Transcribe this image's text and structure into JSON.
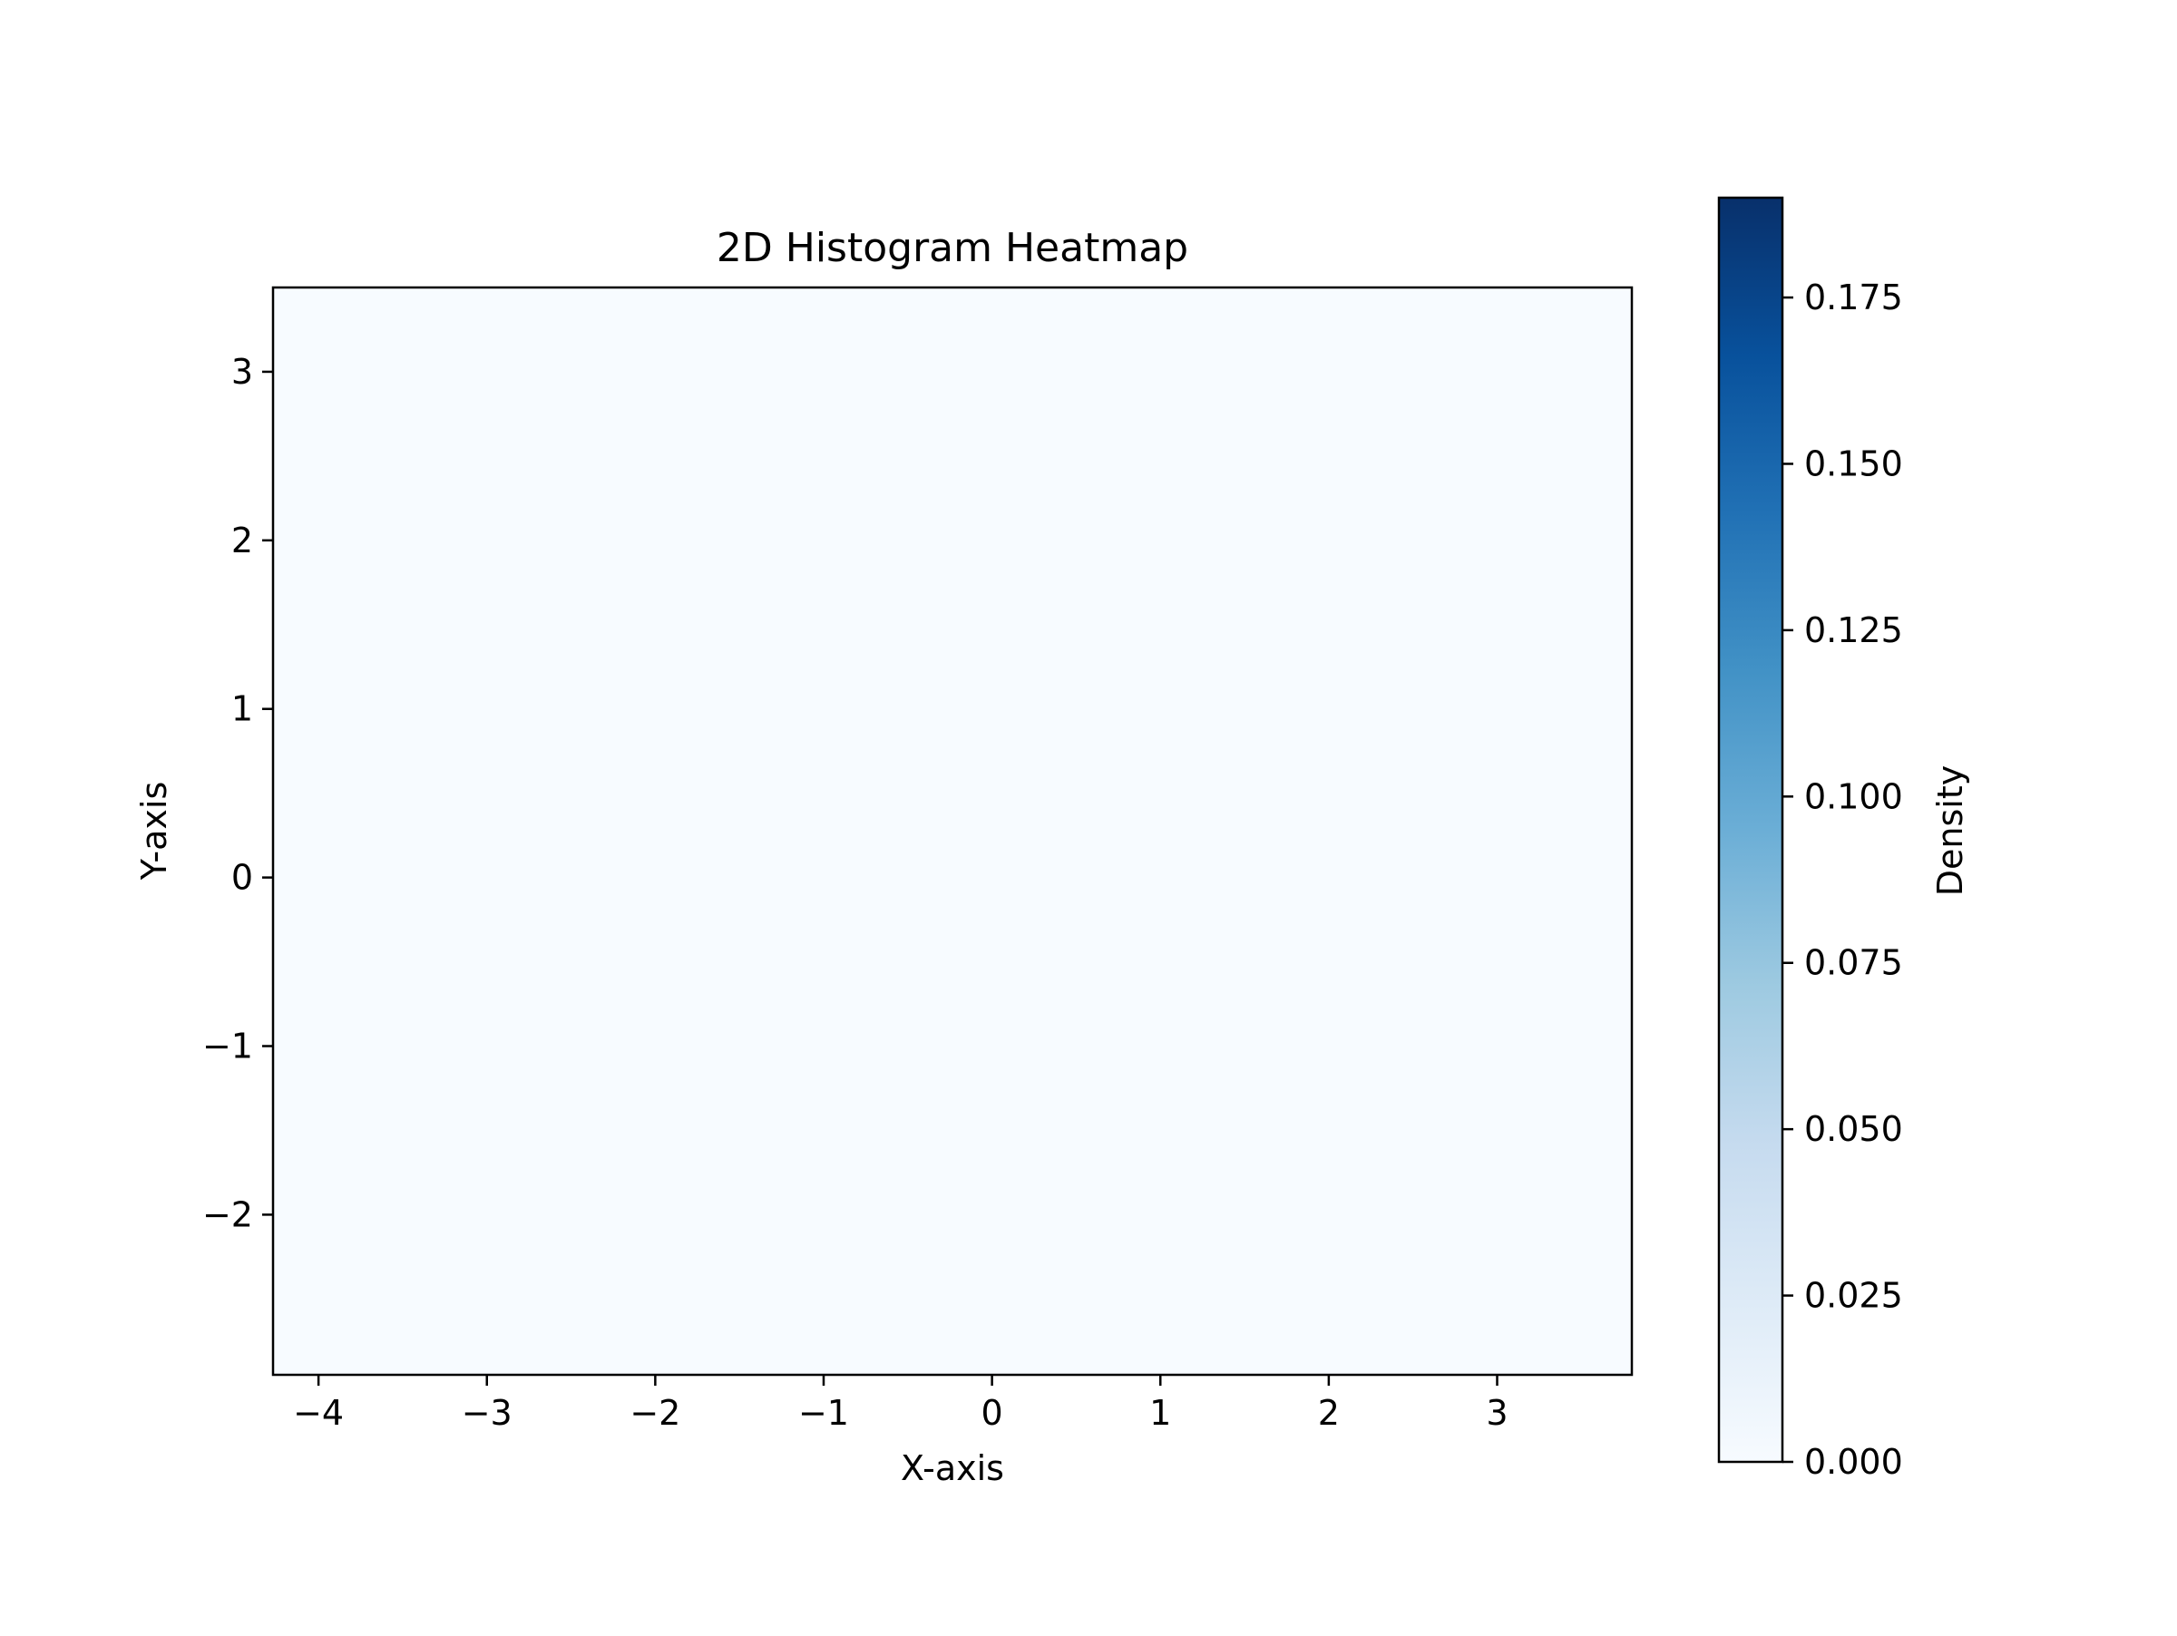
{
  "chart_data": {
    "type": "heatmap",
    "title": "2D Histogram Heatmap",
    "xlabel": "X-axis",
    "ylabel": "Y-axis",
    "colorbar_label": "Density",
    "colormap": "Blues",
    "colormap_stops": [
      "#f7fbff",
      "#deebf7",
      "#c6dbef",
      "#9ecae1",
      "#6baed6",
      "#4292c6",
      "#2171b5",
      "#08519c",
      "#08306b"
    ],
    "xlim": [
      -4.27,
      3.8
    ],
    "ylim": [
      -2.95,
      3.5
    ],
    "x_ticks": [
      -4,
      -3,
      -2,
      -1,
      0,
      1,
      2,
      3
    ],
    "x_tick_labels": [
      "−4",
      "−3",
      "−2",
      "−1",
      "0",
      "1",
      "2",
      "3"
    ],
    "y_ticks": [
      -2,
      -1,
      0,
      1,
      2,
      3
    ],
    "y_tick_labels": [
      "−2",
      "−1",
      "0",
      "1",
      "2",
      "3"
    ],
    "vmin": 0,
    "vmax": 0.19,
    "colorbar_ticks": [
      0,
      0.025,
      0.05,
      0.075,
      0.1,
      0.125,
      0.15,
      0.175
    ],
    "colorbar_tick_labels": [
      "0.000",
      "0.025",
      "0.050",
      "0.075",
      "0.100",
      "0.125",
      "0.150",
      "0.175"
    ],
    "grid": false,
    "n_x_bins": 30,
    "n_y_bins": 30,
    "rows_top_to_bottom": [
      [
        0,
        0,
        0,
        0,
        0,
        0,
        0,
        0,
        0,
        0,
        0,
        0,
        0,
        0,
        0,
        0,
        0,
        0,
        0,
        0,
        0,
        0,
        0,
        0,
        0,
        0,
        0,
        0,
        0,
        0
      ],
      [
        0,
        0,
        0,
        0,
        0,
        0,
        0,
        0,
        0,
        0,
        0,
        0,
        0,
        0,
        0,
        0,
        0,
        0,
        0,
        0,
        0,
        0,
        0,
        0,
        0,
        0,
        0,
        0,
        0,
        0
      ],
      [
        0,
        0,
        0,
        0,
        0,
        0,
        0,
        0,
        0,
        0,
        0,
        0,
        0,
        0,
        0,
        0,
        0,
        0,
        0,
        0,
        0,
        0,
        0,
        0,
        0,
        0,
        0,
        0,
        0,
        0
      ],
      [
        0,
        0,
        0,
        0,
        0,
        0,
        0,
        0,
        0,
        0,
        0,
        0,
        0,
        0,
        0,
        0,
        0,
        0,
        0,
        0,
        0,
        0,
        0,
        0,
        0,
        0,
        0,
        0,
        0,
        0
      ],
      [
        0,
        0,
        0,
        0,
        0,
        0,
        0,
        0,
        0,
        0,
        0,
        0,
        0,
        0,
        0,
        0,
        0,
        0,
        0,
        0,
        0,
        0,
        0,
        0,
        0,
        0,
        0,
        0,
        0,
        0
      ],
      [
        0,
        0,
        0,
        0,
        0,
        0,
        0,
        0,
        0,
        0,
        0,
        0,
        0,
        0,
        0,
        0,
        0,
        0,
        0,
        0,
        0,
        0,
        0,
        0,
        0,
        0,
        0,
        0,
        0,
        0
      ],
      [
        0,
        0,
        0,
        0,
        0,
        0,
        0,
        0,
        0,
        0,
        0,
        0,
        0,
        0,
        0,
        0,
        0,
        0,
        0,
        0,
        0,
        0,
        0,
        0,
        0,
        0,
        0,
        0,
        0,
        0
      ],
      [
        0,
        0,
        0,
        0,
        0,
        0,
        0,
        0,
        0,
        0,
        0,
        0,
        0,
        0,
        0,
        0,
        0,
        0,
        0,
        0,
        0,
        0,
        0,
        0,
        0,
        0,
        0,
        0,
        0,
        0
      ],
      [
        0,
        0,
        0,
        0,
        0,
        0,
        0,
        0,
        0,
        0,
        0,
        0,
        0,
        0,
        0,
        0,
        0,
        0,
        0,
        0,
        0,
        0,
        0,
        0,
        0,
        0,
        0,
        0,
        0,
        0
      ],
      [
        0,
        0,
        0,
        0,
        0,
        0,
        0,
        0,
        0,
        0,
        0,
        0,
        0,
        0,
        0,
        0,
        0,
        0,
        0,
        0,
        0,
        0,
        0,
        0,
        0,
        0,
        0,
        0,
        0,
        0
      ],
      [
        0,
        0,
        0,
        0,
        0,
        0,
        0,
        0,
        0,
        0,
        0,
        0,
        0,
        0,
        0,
        0,
        0,
        0,
        0,
        0,
        0,
        0,
        0,
        0,
        0,
        0,
        0,
        0,
        0,
        0
      ],
      [
        0,
        0,
        0,
        0,
        0,
        0,
        0,
        0,
        0,
        0,
        0,
        0,
        0,
        0,
        0,
        0,
        0,
        0,
        0,
        0,
        0,
        0,
        0,
        0,
        0,
        0,
        0,
        0,
        0,
        0
      ],
      [
        0,
        0,
        0,
        0,
        0,
        0,
        0,
        0,
        0,
        0,
        0,
        0,
        0,
        0,
        0,
        0,
        0,
        0,
        0,
        0,
        0,
        0,
        0,
        0,
        0,
        0,
        0,
        0,
        0,
        0
      ],
      [
        0,
        0,
        0,
        0,
        0,
        0,
        0,
        0,
        0,
        0,
        0,
        0,
        0,
        0,
        0,
        0,
        0,
        0,
        0,
        0,
        0,
        0,
        0,
        0,
        0,
        0,
        0,
        0,
        0,
        0
      ],
      [
        0,
        0,
        0,
        0,
        0,
        0,
        0,
        0,
        0,
        0,
        0,
        0,
        0,
        0,
        0,
        0,
        0,
        0,
        0,
        0,
        0,
        0,
        0,
        0,
        0,
        0,
        0,
        0,
        0,
        0
      ],
      [
        0,
        0,
        0,
        0,
        0,
        0,
        0,
        0,
        0,
        0,
        0,
        0,
        0,
        0,
        0,
        0,
        0,
        0,
        0,
        0,
        0,
        0,
        0,
        0,
        0,
        0,
        0,
        0,
        0,
        0
      ],
      [
        0,
        0,
        0,
        0,
        0,
        0,
        0,
        0,
        0,
        0,
        0,
        0,
        0,
        0,
        0,
        0,
        0,
        0,
        0,
        0,
        0,
        0,
        0,
        0,
        0,
        0,
        0,
        0,
        0,
        0
      ],
      [
        0,
        0,
        0,
        0,
        0,
        0,
        0,
        0,
        0,
        0,
        0,
        0,
        0,
        0,
        0,
        0,
        0,
        0,
        0,
        0,
        0,
        0,
        0,
        0,
        0,
        0,
        0,
        0,
        0,
        0
      ],
      [
        0,
        0,
        0,
        0,
        0,
        0,
        0,
        0,
        0,
        0,
        0,
        0,
        0,
        0,
        0,
        0,
        0,
        0,
        0,
        0,
        0,
        0,
        0,
        0,
        0,
        0,
        0,
        0,
        0,
        0
      ],
      [
        0,
        0,
        0,
        0,
        0,
        0,
        0,
        0,
        0,
        0,
        0,
        0,
        0,
        0,
        0,
        0,
        0,
        0,
        0,
        0,
        0,
        0,
        0,
        0,
        0,
        0,
        0,
        0,
        0,
        0
      ],
      [
        0,
        0,
        0,
        0,
        0,
        0,
        0,
        0,
        0,
        0,
        0,
        0,
        0,
        0,
        0,
        0,
        0,
        0,
        0,
        0,
        0,
        0,
        0,
        0,
        0,
        0,
        0,
        0,
        0,
        0
      ],
      [
        0,
        0,
        0,
        0,
        0,
        0,
        0,
        0,
        0,
        0,
        0,
        0,
        0,
        0,
        0,
        0,
        0,
        0,
        0,
        0,
        0,
        0,
        0,
        0,
        0,
        0,
        0,
        0,
        0,
        0
      ],
      [
        0,
        0,
        0,
        0,
        0,
        0,
        0,
        0,
        0,
        0,
        0,
        0,
        0,
        0,
        0,
        0,
        0,
        0,
        0,
        0,
        0,
        0,
        0,
        0,
        0,
        0,
        0,
        0,
        0,
        0
      ],
      [
        0,
        0,
        0,
        0,
        0,
        0,
        0,
        0,
        0,
        0,
        0,
        0,
        0,
        0,
        0,
        0,
        0,
        0,
        0,
        0,
        0,
        0,
        0,
        0,
        0,
        0,
        0,
        0,
        0,
        0
      ],
      [
        0,
        0,
        0,
        0,
        0,
        0,
        0,
        0,
        0,
        0,
        0,
        0,
        0,
        0,
        0,
        0,
        0,
        0,
        0,
        0,
        0,
        0,
        0,
        0,
        0,
        0,
        0,
        0,
        0,
        0
      ],
      [
        0,
        0,
        0,
        0,
        0,
        0,
        0,
        0,
        0,
        0,
        0,
        0,
        0,
        0,
        0,
        0,
        0,
        0,
        0,
        0,
        0,
        0,
        0,
        0,
        0,
        0,
        0,
        0,
        0,
        0
      ],
      [
        0,
        0,
        0,
        0,
        0,
        0,
        0,
        0,
        0,
        0,
        0,
        0,
        0,
        0,
        0,
        0,
        0,
        0,
        0,
        0,
        0,
        0,
        0,
        0,
        0,
        0,
        0,
        0,
        0,
        0
      ],
      [
        0,
        0,
        0,
        0,
        0,
        0,
        0,
        0,
        0,
        0,
        0,
        0,
        0,
        0,
        0,
        0,
        0,
        0,
        0,
        0,
        0,
        0,
        0,
        0,
        0,
        0,
        0,
        0,
        0,
        0
      ],
      [
        0,
        0,
        0,
        0,
        0,
        0,
        0,
        0,
        0,
        0,
        0,
        0,
        0,
        0,
        0,
        0,
        0,
        0,
        0,
        0,
        0,
        0,
        0,
        0,
        0,
        0,
        0,
        0,
        0,
        0
      ],
      [
        0,
        0,
        0,
        0,
        0,
        0,
        0,
        0,
        0,
        0,
        0,
        0,
        0,
        0,
        0,
        0,
        0,
        0,
        0,
        0,
        0,
        0,
        0,
        0,
        0,
        0,
        0,
        0,
        0,
        0
      ]
    ]
  }
}
